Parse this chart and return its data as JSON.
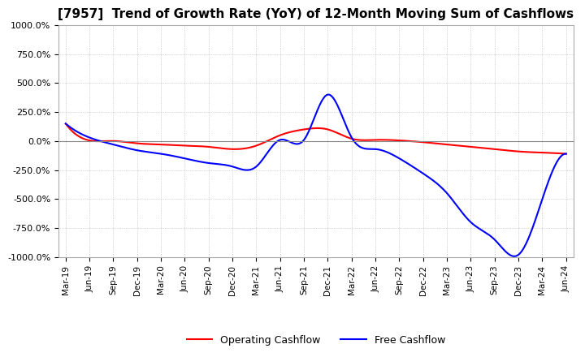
{
  "title": "[7957]  Trend of Growth Rate (YoY) of 12-Month Moving Sum of Cashflows",
  "title_fontsize": 11,
  "ylim": [
    -1000,
    1000
  ],
  "yticks": [
    1000,
    750,
    500,
    250,
    0,
    -250,
    -500,
    -750,
    -1000
  ],
  "ytick_labels": [
    "1000.0%",
    "750.0%",
    "500.0%",
    "250.0%",
    "0.0%",
    "-250.0%",
    "-500.0%",
    "-750.0%",
    "-1000.0%"
  ],
  "x_labels": [
    "Mar-19",
    "Jun-19",
    "Sep-19",
    "Dec-19",
    "Mar-20",
    "Jun-20",
    "Sep-20",
    "Dec-20",
    "Mar-21",
    "Jun-21",
    "Sep-21",
    "Dec-21",
    "Mar-22",
    "Jun-22",
    "Sep-22",
    "Dec-22",
    "Mar-23",
    "Jun-23",
    "Sep-23",
    "Dec-23",
    "Mar-24",
    "Jun-24"
  ],
  "operating_cashflow": [
    150,
    5,
    0,
    -20,
    -30,
    -40,
    -50,
    -70,
    -40,
    50,
    100,
    100,
    20,
    10,
    5,
    -10,
    -30,
    -50,
    -70,
    -90,
    -100,
    -110
  ],
  "free_cashflow": [
    150,
    30,
    -30,
    -80,
    -110,
    -150,
    -190,
    -220,
    -220,
    10,
    10,
    400,
    30,
    -70,
    -150,
    -280,
    -450,
    -700,
    -850,
    -980,
    -500,
    -110
  ],
  "operating_color": "#ff0000",
  "free_color": "#0000ff",
  "background_color": "#ffffff",
  "grid_color": "#b0b0b0",
  "grid_style": ":",
  "line_width": 1.5
}
